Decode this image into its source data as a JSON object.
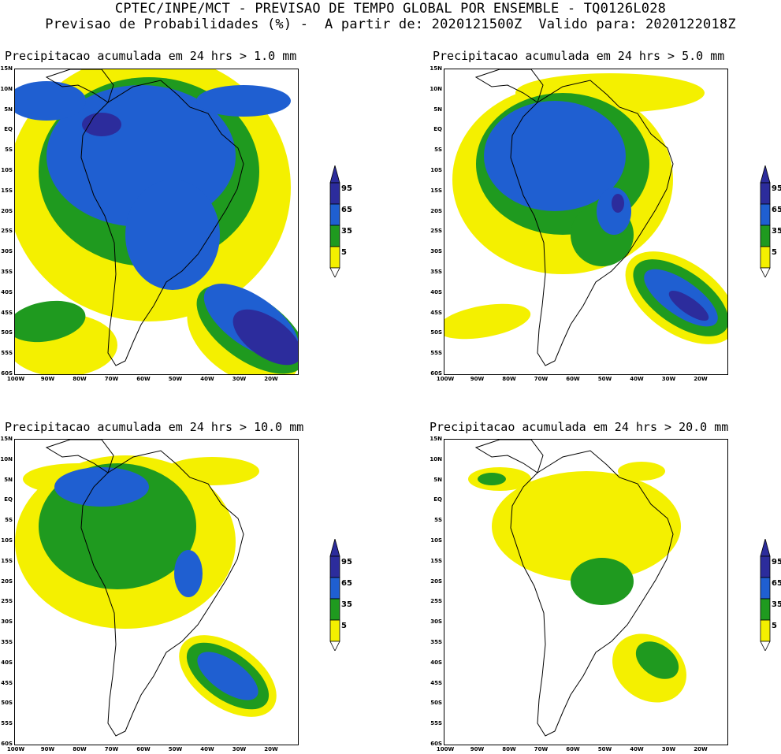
{
  "header": {
    "line1": "CPTEC/INPE/MCT - PREVISAO DE TEMPO GLOBAL POR ENSEMBLE - TQ0126L028",
    "line2": "Previsao de Probabilidades (%) -  A partir de: 2020121500Z  Valido para: 2020122018Z"
  },
  "axis": {
    "lat_labels": [
      "15N",
      "10N",
      "5N",
      "EQ",
      "5S",
      "10S",
      "15S",
      "20S",
      "25S",
      "30S",
      "35S",
      "40S",
      "45S",
      "50S",
      "55S",
      "60S"
    ],
    "lon_labels": [
      "100W",
      "90W",
      "80W",
      "70W",
      "60W",
      "50W",
      "40W",
      "30W",
      "20W"
    ]
  },
  "legend": {
    "levels": [
      "95",
      "65",
      "35",
      "5"
    ],
    "colors": {
      "p95": "#2c2c9c",
      "p65": "#1f5fd1",
      "p35": "#1f9a1f",
      "p5": "#f4f000"
    }
  },
  "panels": [
    {
      "title": "Precipitacao acumulada em 24 hrs > 1.0 mm",
      "threshold_mm": 1.0
    },
    {
      "title": "Precipitacao acumulada em 24 hrs > 5.0 mm",
      "threshold_mm": 5.0
    },
    {
      "title": "Precipitacao acumulada em 24 hrs > 10.0 mm",
      "threshold_mm": 10.0
    },
    {
      "title": "Precipitacao acumulada em 24 hrs > 20.0 mm",
      "threshold_mm": 20.0
    }
  ]
}
